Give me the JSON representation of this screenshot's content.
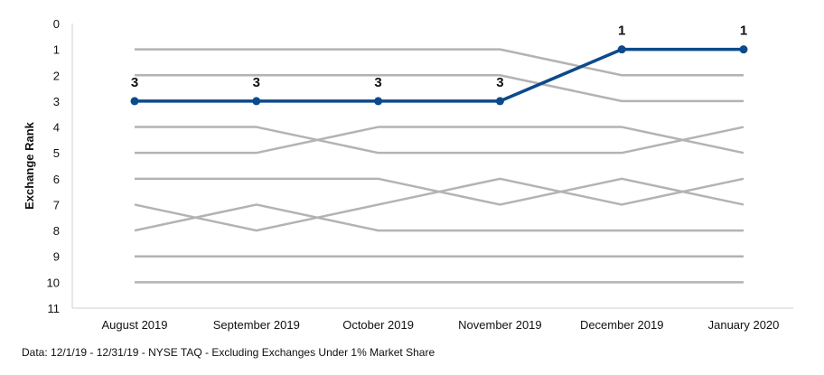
{
  "chart_data": {
    "type": "line",
    "title": "",
    "xlabel": "",
    "ylabel": "Exchange Rank",
    "ylim": [
      0,
      11
    ],
    "y_inverted": true,
    "yticks": [
      0,
      1,
      2,
      3,
      4,
      5,
      6,
      7,
      8,
      9,
      10,
      11
    ],
    "categories": [
      "August 2019",
      "September 2019",
      "October 2019",
      "November 2019",
      "December 2019",
      "January 2020"
    ],
    "grid": false,
    "highlight_color": "#0b4a8b",
    "background_color": "#b3b3b3",
    "series": [
      {
        "values": [
          3,
          3,
          3,
          3,
          1,
          1
        ],
        "highlight": true,
        "labels": [
          "3",
          "3",
          "3",
          "3",
          "1",
          "1"
        ]
      },
      {
        "values": [
          1,
          1,
          1,
          1,
          2,
          2
        ]
      },
      {
        "values": [
          2,
          2,
          2,
          2,
          3,
          3
        ]
      },
      {
        "values": [
          4,
          4,
          5,
          5,
          5,
          4
        ]
      },
      {
        "values": [
          5,
          5,
          4,
          4,
          4,
          5
        ]
      },
      {
        "values": [
          6,
          6,
          6,
          7,
          6,
          7
        ]
      },
      {
        "values": [
          7,
          8,
          7,
          6,
          7,
          6
        ]
      },
      {
        "values": [
          8,
          7,
          8,
          8,
          8,
          8
        ]
      },
      {
        "values": [
          9,
          9,
          9,
          9,
          9,
          9
        ]
      },
      {
        "values": [
          10,
          10,
          10,
          10,
          10,
          10
        ]
      }
    ]
  },
  "footnote": "Data: 12/1/19 - 12/31/19 - NYSE TAQ - Excluding Exchanges Under 1% Market Share"
}
